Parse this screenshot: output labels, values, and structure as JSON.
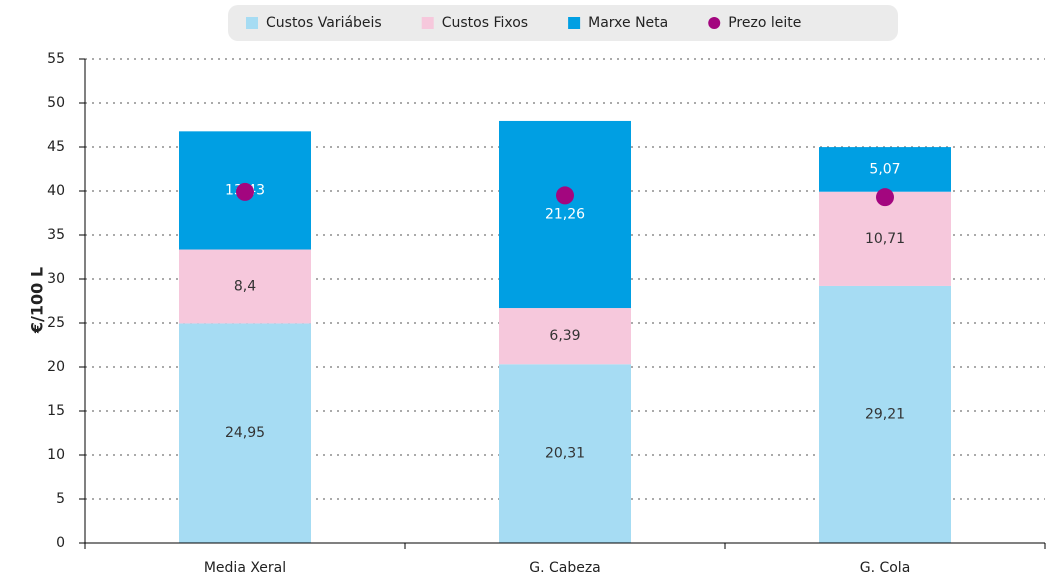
{
  "chart_data": {
    "type": "bar",
    "stacked": true,
    "y_label": "€/100 L",
    "categories": [
      "Media Xeral",
      "G. Cabeza",
      "G. Cola"
    ],
    "series": [
      {
        "name": "Custos Variábeis",
        "color": "#a6dcf3",
        "label_color": "#333333",
        "values": [
          24.95,
          20.31,
          29.21
        ],
        "value_labels": [
          "24,95",
          "20,31",
          "29,21"
        ]
      },
      {
        "name": "Custos Fixos",
        "color": "#f6c8dc",
        "label_color": "#333333",
        "values": [
          8.4,
          6.39,
          10.71
        ],
        "value_labels": [
          "8,4",
          "6,39",
          "10,71"
        ]
      },
      {
        "name": "Marxe Neta",
        "color": "#009fe3",
        "label_color": "#ffffff",
        "values": [
          13.43,
          21.26,
          5.07
        ],
        "value_labels": [
          "13,43",
          "21,26",
          "5,07"
        ]
      },
      {
        "name": "Prezo leite",
        "color": "#a3067f",
        "type": "point",
        "values": [
          39.9,
          39.5,
          39.3
        ]
      }
    ],
    "ylim": [
      0,
      55
    ],
    "yticks": [
      0,
      5,
      10,
      15,
      20,
      25,
      30,
      35,
      40,
      45,
      50,
      55
    ],
    "grid": true,
    "legend": "top"
  }
}
